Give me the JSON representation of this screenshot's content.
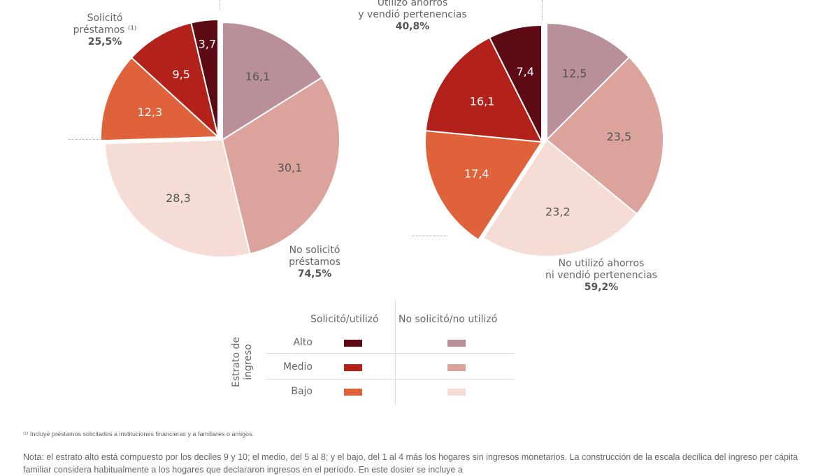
{
  "chart_data": [
    {
      "type": "pie",
      "slices": [
        {
          "label": "No solicitó - Alto",
          "value": 16.1,
          "color": "#b98f9a",
          "text": "16,1"
        },
        {
          "label": "No solicitó - Medio",
          "value": 30.1,
          "color": "#dba39c",
          "text": "30,1"
        },
        {
          "label": "No solicitó - Bajo",
          "value": 28.3,
          "color": "#f5dcd5",
          "text": "28,3"
        },
        {
          "label": "Solicitó - Bajo",
          "value": 12.3,
          "color": "#e0623a",
          "text": "12,3"
        },
        {
          "label": "Solicitó - Medio",
          "value": 9.5,
          "color": "#b3221a",
          "text": "9,5"
        },
        {
          "label": "Solicitó - Alto",
          "value": 3.7,
          "color": "#5e0a14",
          "text": "3,7"
        }
      ],
      "group_a": {
        "line1": "Solicitó",
        "line2": "préstamos ⁽¹⁾",
        "pct": "25,5%"
      },
      "group_b": {
        "line1": "No solicitó",
        "line2": "préstamos",
        "pct": "74,5%"
      }
    },
    {
      "type": "pie",
      "slices": [
        {
          "label": "No utilizó - Alto",
          "value": 12.5,
          "color": "#b98f9a",
          "text": "12,5"
        },
        {
          "label": "No utilizó - Medio",
          "value": 23.5,
          "color": "#dba39c",
          "text": "23,5"
        },
        {
          "label": "No utilizó - Bajo",
          "value": 23.2,
          "color": "#f5dcd5",
          "text": "23,2"
        },
        {
          "label": "Utilizó - Bajo",
          "value": 17.4,
          "color": "#e0623a",
          "text": "17,4"
        },
        {
          "label": "Utilizó - Medio",
          "value": 16.1,
          "color": "#b3221a",
          "text": "16,1"
        },
        {
          "label": "Utilizó - Alto",
          "value": 7.4,
          "color": "#5e0a14",
          "text": "7,4"
        }
      ],
      "group_a": {
        "line1": "Utilizó ahorros",
        "line2": "y vendió pertenencias",
        "pct": "40,8%"
      },
      "group_b": {
        "line1": "No utilizó ahorros",
        "line2": "ni vendió pertenencias",
        "pct": "59,2%"
      }
    }
  ],
  "legend": {
    "col1": "Solicitó/utilizó",
    "col2": "No solicitó/no utilizó",
    "axis": "Estrato de ingreso",
    "rows": [
      "Alto",
      "Medio",
      "Bajo"
    ],
    "colors1": [
      "#5e0a14",
      "#b3221a",
      "#e0623a"
    ],
    "colors2": [
      "#b98f9a",
      "#dba39c",
      "#f5dcd5"
    ]
  },
  "footnote": "⁽¹⁾ Incluye préstamos solicitados a instituciones financieras y a familiares o amigos.",
  "nota": "Nota: el estrato alto está compuesto por los deciles 9 y 10; el medio, del 5 al 8; y el bajo, del 1 al 4 más los hogares sin ingresos monetarios. La construcción de la escala decílica del ingreso per cápita familiar considera habitualmente a los hogares que declararon ingresos en el período. En este dosier se incluye a"
}
